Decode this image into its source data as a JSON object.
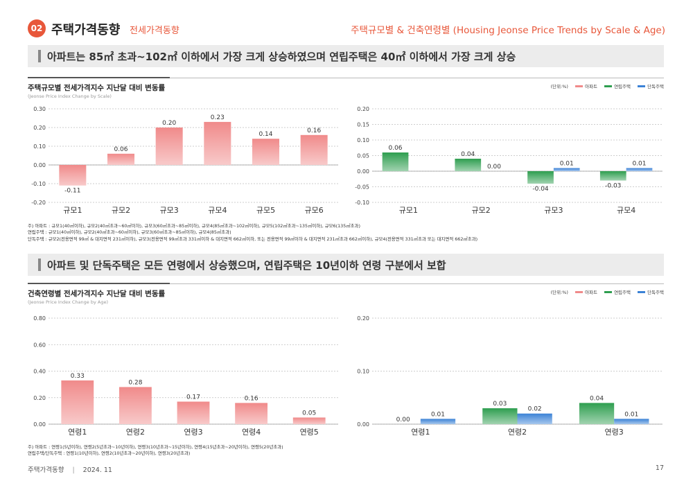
{
  "header": {
    "number": "02",
    "title": "주택가격동향",
    "subtitle": "전세가격동향",
    "right_title": "주택규모별 & 건축연령별 (Housing Jeonse Price Trends by Scale & Age)"
  },
  "section1": {
    "banner": "아파트는 85㎡ 초과~102㎡ 이하에서 가장 크게 상승하였으며 연립주택은 40㎡ 이하에서 가장 크게 상승",
    "title": "주택규모별 전세가격지수 지난달 대비 변동률",
    "subtitle": "(Jeonse Price Index Change by Scale)",
    "notes": [
      "주) 아파트 : 규모1(40㎡이하), 규모2(40㎡초과~60㎡이하), 규모3(60㎡초과~85㎡이하), 규모4(85㎡초과~102㎡이하), 규모5(102㎡초과~135㎡이하), 규모6(135㎡초과)",
      "      연립주택 : 규모1(40㎡이하), 규모2(40㎡초과~60㎡이하), 규모3(60㎡초과~85㎡이하), 규모4(85㎡초과)",
      "      단독주택 : 규모2(전용면적 99㎡ & 대지면적 231㎡이하), 규모3(전용면적 99㎡초과 331㎡이하 & 대지면적 662㎡이하, 또는 전용면적 99㎡이하 & 대지면적 231㎡초과 662㎡이하), 규모4(전용면적 331㎡초과 또는 대지면적 662㎡초과)"
    ]
  },
  "section2": {
    "banner": "아파트 및 단독주택은 모든 연령에서 상승했으며, 연립주택은 10년이하 연령 구분에서 보합",
    "title": "건축연령별 전세가격지수 지난달 대비 변동률",
    "subtitle": "(Jeonse Price Index Change by Age)",
    "notes": [
      "주) 아파트 : 연령1(5년이하), 연령2(5년초과~10년이하), 연령3(10년초과~15년이하), 연령4(15년초과~20년이하), 연령5(20년초과)",
      "      연립주택/단독주택 : 연령1(10년이하), 연령2(10년초과~20년이하), 연령3(20년초과)"
    ]
  },
  "legend": {
    "unit": "(단위:%)",
    "items": [
      {
        "label": "아파트",
        "color": "#f08a8a"
      },
      {
        "label": "연립주택",
        "color": "#2e9e4f"
      },
      {
        "label": "단독주택",
        "color": "#3b82d6"
      }
    ]
  },
  "footer": {
    "left": "주택가격동향",
    "date": "2024. 11",
    "page": "17"
  },
  "chart_data": [
    {
      "type": "bar",
      "categories": [
        "규모1",
        "규모2",
        "규모3",
        "규모4",
        "규모5",
        "규모6"
      ],
      "series": [
        {
          "name": "아파트",
          "values": [
            -0.11,
            0.06,
            0.2,
            0.23,
            0.14,
            0.16
          ],
          "color": "#f08a8a"
        }
      ],
      "ylim": [
        -0.2,
        0.3
      ],
      "yticks": [
        "0.30",
        "0.20",
        "0.10",
        "0.00",
        "-0.10",
        "-0.20"
      ],
      "grid": true
    },
    {
      "type": "bar",
      "categories": [
        "규모1",
        "규모2",
        "규모3",
        "규모4"
      ],
      "series": [
        {
          "name": "연립주택",
          "values": [
            0.06,
            0.04,
            -0.04,
            -0.03
          ],
          "color": "#2e9e4f"
        },
        {
          "name": "단독주택",
          "values": [
            null,
            0.0,
            0.01,
            0.01
          ],
          "color": "#3b82d6"
        }
      ],
      "ylim": [
        -0.1,
        0.2
      ],
      "yticks": [
        "0.20",
        "0.15",
        "0.10",
        "0.05",
        "0.00",
        "-0.05",
        "-0.10"
      ],
      "grid": true
    },
    {
      "type": "bar",
      "categories": [
        "연령1",
        "연령2",
        "연령3",
        "연령4",
        "연령5"
      ],
      "series": [
        {
          "name": "아파트",
          "values": [
            0.33,
            0.28,
            0.17,
            0.16,
            0.05
          ],
          "color": "#f08a8a"
        }
      ],
      "ylim": [
        0,
        0.8
      ],
      "yticks": [
        "0.80",
        "0.60",
        "0.40",
        "0.20",
        "0.00"
      ],
      "grid": true
    },
    {
      "type": "bar",
      "categories": [
        "연령1",
        "연령2",
        "연령3"
      ],
      "series": [
        {
          "name": "연립주택",
          "values": [
            0.0,
            0.03,
            0.04
          ],
          "color": "#2e9e4f"
        },
        {
          "name": "단독주택",
          "values": [
            0.01,
            0.02,
            0.01
          ],
          "color": "#3b82d6"
        }
      ],
      "ylim": [
        0,
        0.2
      ],
      "yticks": [
        "0.20",
        "0.10",
        "0.00"
      ],
      "grid": true
    }
  ]
}
